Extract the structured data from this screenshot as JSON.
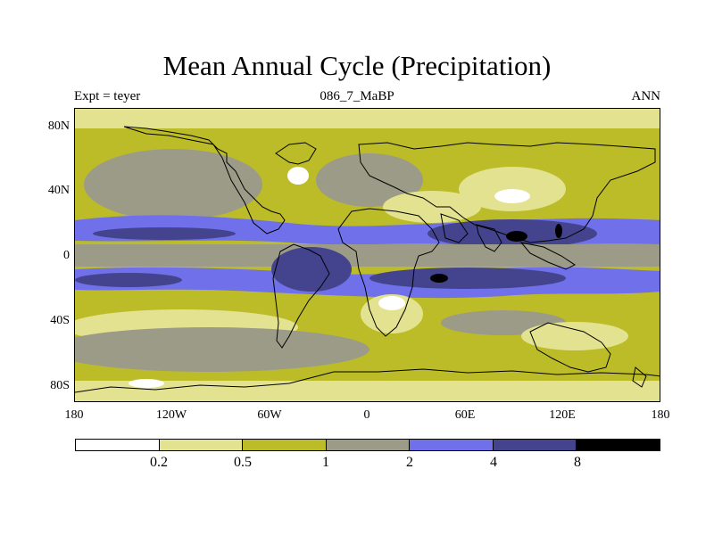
{
  "title": "Mean Annual Cycle (Precipitation)",
  "subtitle_left": "Expt = teyer",
  "subtitle_center": "086_7_MaBP",
  "subtitle_right": "ANN",
  "lat_labels": [
    "80N",
    "40N",
    "0",
    "40S",
    "80S"
  ],
  "lon_labels": [
    "180",
    "120W",
    "60W",
    "0",
    "60E",
    "120E",
    "180"
  ],
  "colorbar": {
    "labels": [
      "0.2",
      "0.5",
      "1",
      "2",
      "4",
      "8"
    ],
    "colors": [
      "#ffffff",
      "#e2e290",
      "#bcbc28",
      "#9b9b88",
      "#7070ea",
      "#44448e",
      "#000000"
    ]
  }
}
